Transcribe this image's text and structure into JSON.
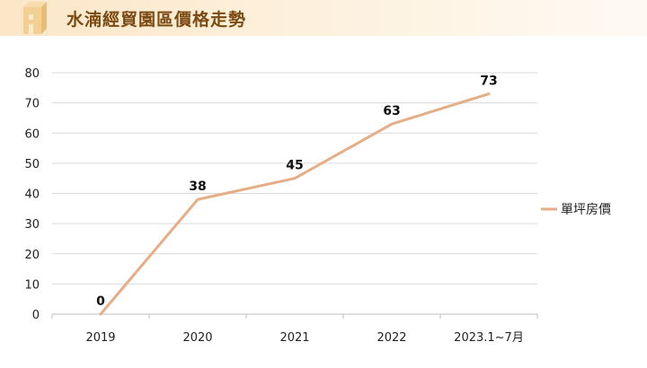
{
  "header": {
    "title": "水湳經貿園區價格走勢"
  },
  "colors": {
    "series": "#e5ae86",
    "grid": "#d9d9d9",
    "axis": "#bfbfbf",
    "title": "#7a4a12"
  },
  "icons": {
    "logo": "building-logo-icon"
  },
  "chart_data": {
    "type": "line",
    "title": "水湳經貿園區價格走勢",
    "categories": [
      "2019",
      "2020",
      "2021",
      "2022",
      "2023.1~7月"
    ],
    "series": [
      {
        "name": "單坪房價",
        "values": [
          0,
          38,
          45,
          63,
          73
        ]
      }
    ],
    "ylim": [
      0,
      80
    ],
    "yticks": [
      0,
      10,
      20,
      30,
      40,
      50,
      60,
      70,
      80
    ],
    "grid": true,
    "legend": "right",
    "data_labels": true
  }
}
